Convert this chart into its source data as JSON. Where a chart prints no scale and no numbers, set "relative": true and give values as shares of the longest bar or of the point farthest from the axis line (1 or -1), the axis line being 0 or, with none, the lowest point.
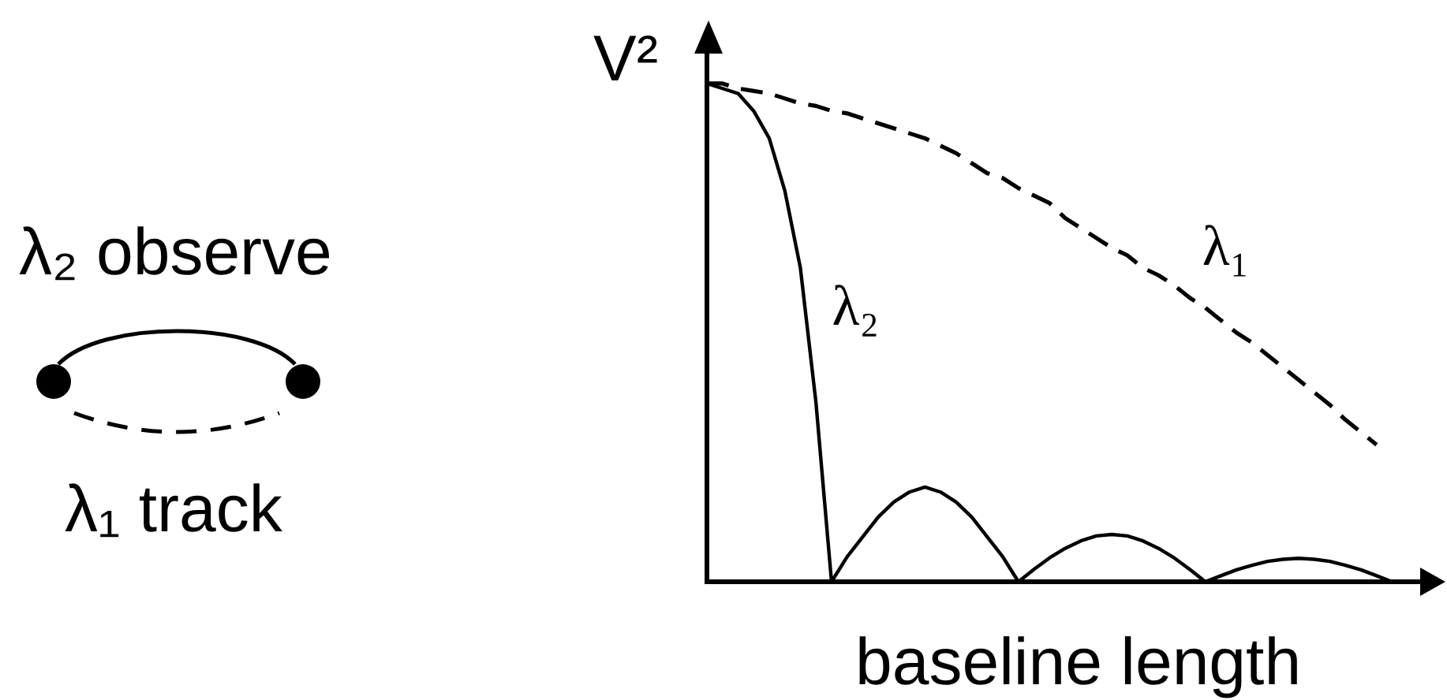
{
  "chart_data": {
    "type": "line",
    "xlabel": "baseline length",
    "ylabel": "V²",
    "relative": true,
    "marker": "none",
    "tick_labels": false,
    "annotations": [
      "λ₂ observe",
      "λ₁ track"
    ],
    "categories": [
      null,
      null,
      null,
      null,
      null,
      null,
      null,
      null,
      null,
      null,
      null,
      null,
      null,
      null,
      null,
      null,
      null,
      null,
      null,
      null,
      null,
      null,
      null,
      null,
      null,
      null,
      null,
      null,
      null,
      null,
      null,
      null,
      null,
      null,
      null,
      null,
      null,
      null,
      null,
      null,
      null,
      null,
      null,
      null,
      null,
      null,
      null
    ],
    "series": [
      {
        "name": "λ₁",
        "color": "#000000",
        "line_style": "dashed",
        "values": [
          1.0,
          1.0,
          0.99,
          0.985,
          0.98,
          0.97,
          0.96,
          0.955,
          0.945,
          0.94,
          0.93,
          0.92,
          0.91,
          0.9,
          0.89,
          0.875,
          0.86,
          0.84,
          0.82,
          0.81,
          0.79,
          0.775,
          0.76,
          0.73,
          0.71,
          0.69,
          0.67,
          0.655,
          0.63,
          0.615,
          0.595,
          0.57,
          0.55,
          0.525,
          0.5,
          0.48,
          0.455,
          0.43,
          0.405,
          0.38,
          0.355,
          0.325,
          0.3,
          0.275,
          null,
          null,
          null
        ]
      },
      {
        "name": "λ₂",
        "color": "#000000",
        "line_style": "solid",
        "values": [
          1.0,
          0.99,
          0.98,
          0.945,
          0.89,
          0.785,
          0.63,
          0.36,
          0,
          0.05,
          0.09,
          0.13,
          0.16,
          0.18,
          0.19,
          0.18,
          0.16,
          0.13,
          0.09,
          0.05,
          0,
          0.025,
          0.048,
          0.067,
          0.082,
          0.092,
          0.095,
          0.092,
          0.082,
          0.067,
          0.048,
          0.025,
          0,
          0.012,
          0.024,
          0.033,
          0.041,
          0.045,
          0.047,
          0.045,
          0.041,
          0.033,
          0.024,
          0.012,
          0,
          null,
          null
        ]
      }
    ]
  }
}
